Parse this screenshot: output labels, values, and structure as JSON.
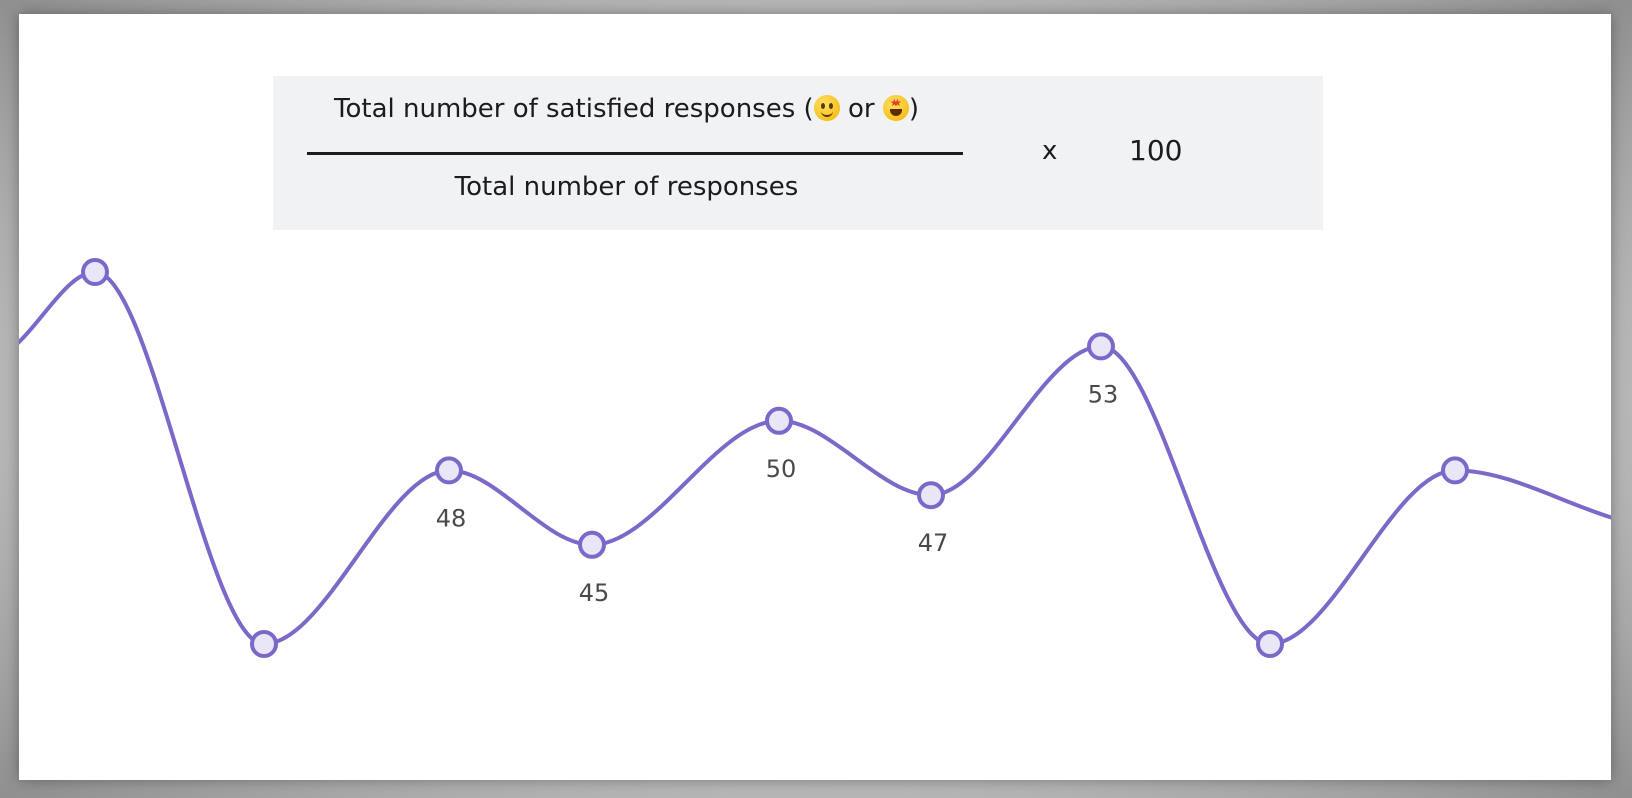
{
  "formula": {
    "numerator_text": "Total number of satisfied responses (",
    "numerator_or": " or ",
    "numerator_close": ")",
    "denominator_text": "Total number of responses",
    "operator": "x",
    "multiplier": "100"
  },
  "chart_data": {
    "type": "line",
    "smooth": true,
    "line_color": "#7b68c8",
    "marker_fill": "#e8e6f7",
    "points": [
      {
        "y": 56,
        "label": ""
      },
      {
        "y": 41,
        "label": ""
      },
      {
        "y": 48,
        "label": "48"
      },
      {
        "y": 45,
        "label": "45"
      },
      {
        "y": 50,
        "label": "50"
      },
      {
        "y": 47,
        "label": "47"
      },
      {
        "y": 53,
        "label": "53"
      },
      {
        "y": 41,
        "label": ""
      },
      {
        "y": 48,
        "label": ""
      }
    ],
    "ylim": [
      40,
      58
    ]
  }
}
